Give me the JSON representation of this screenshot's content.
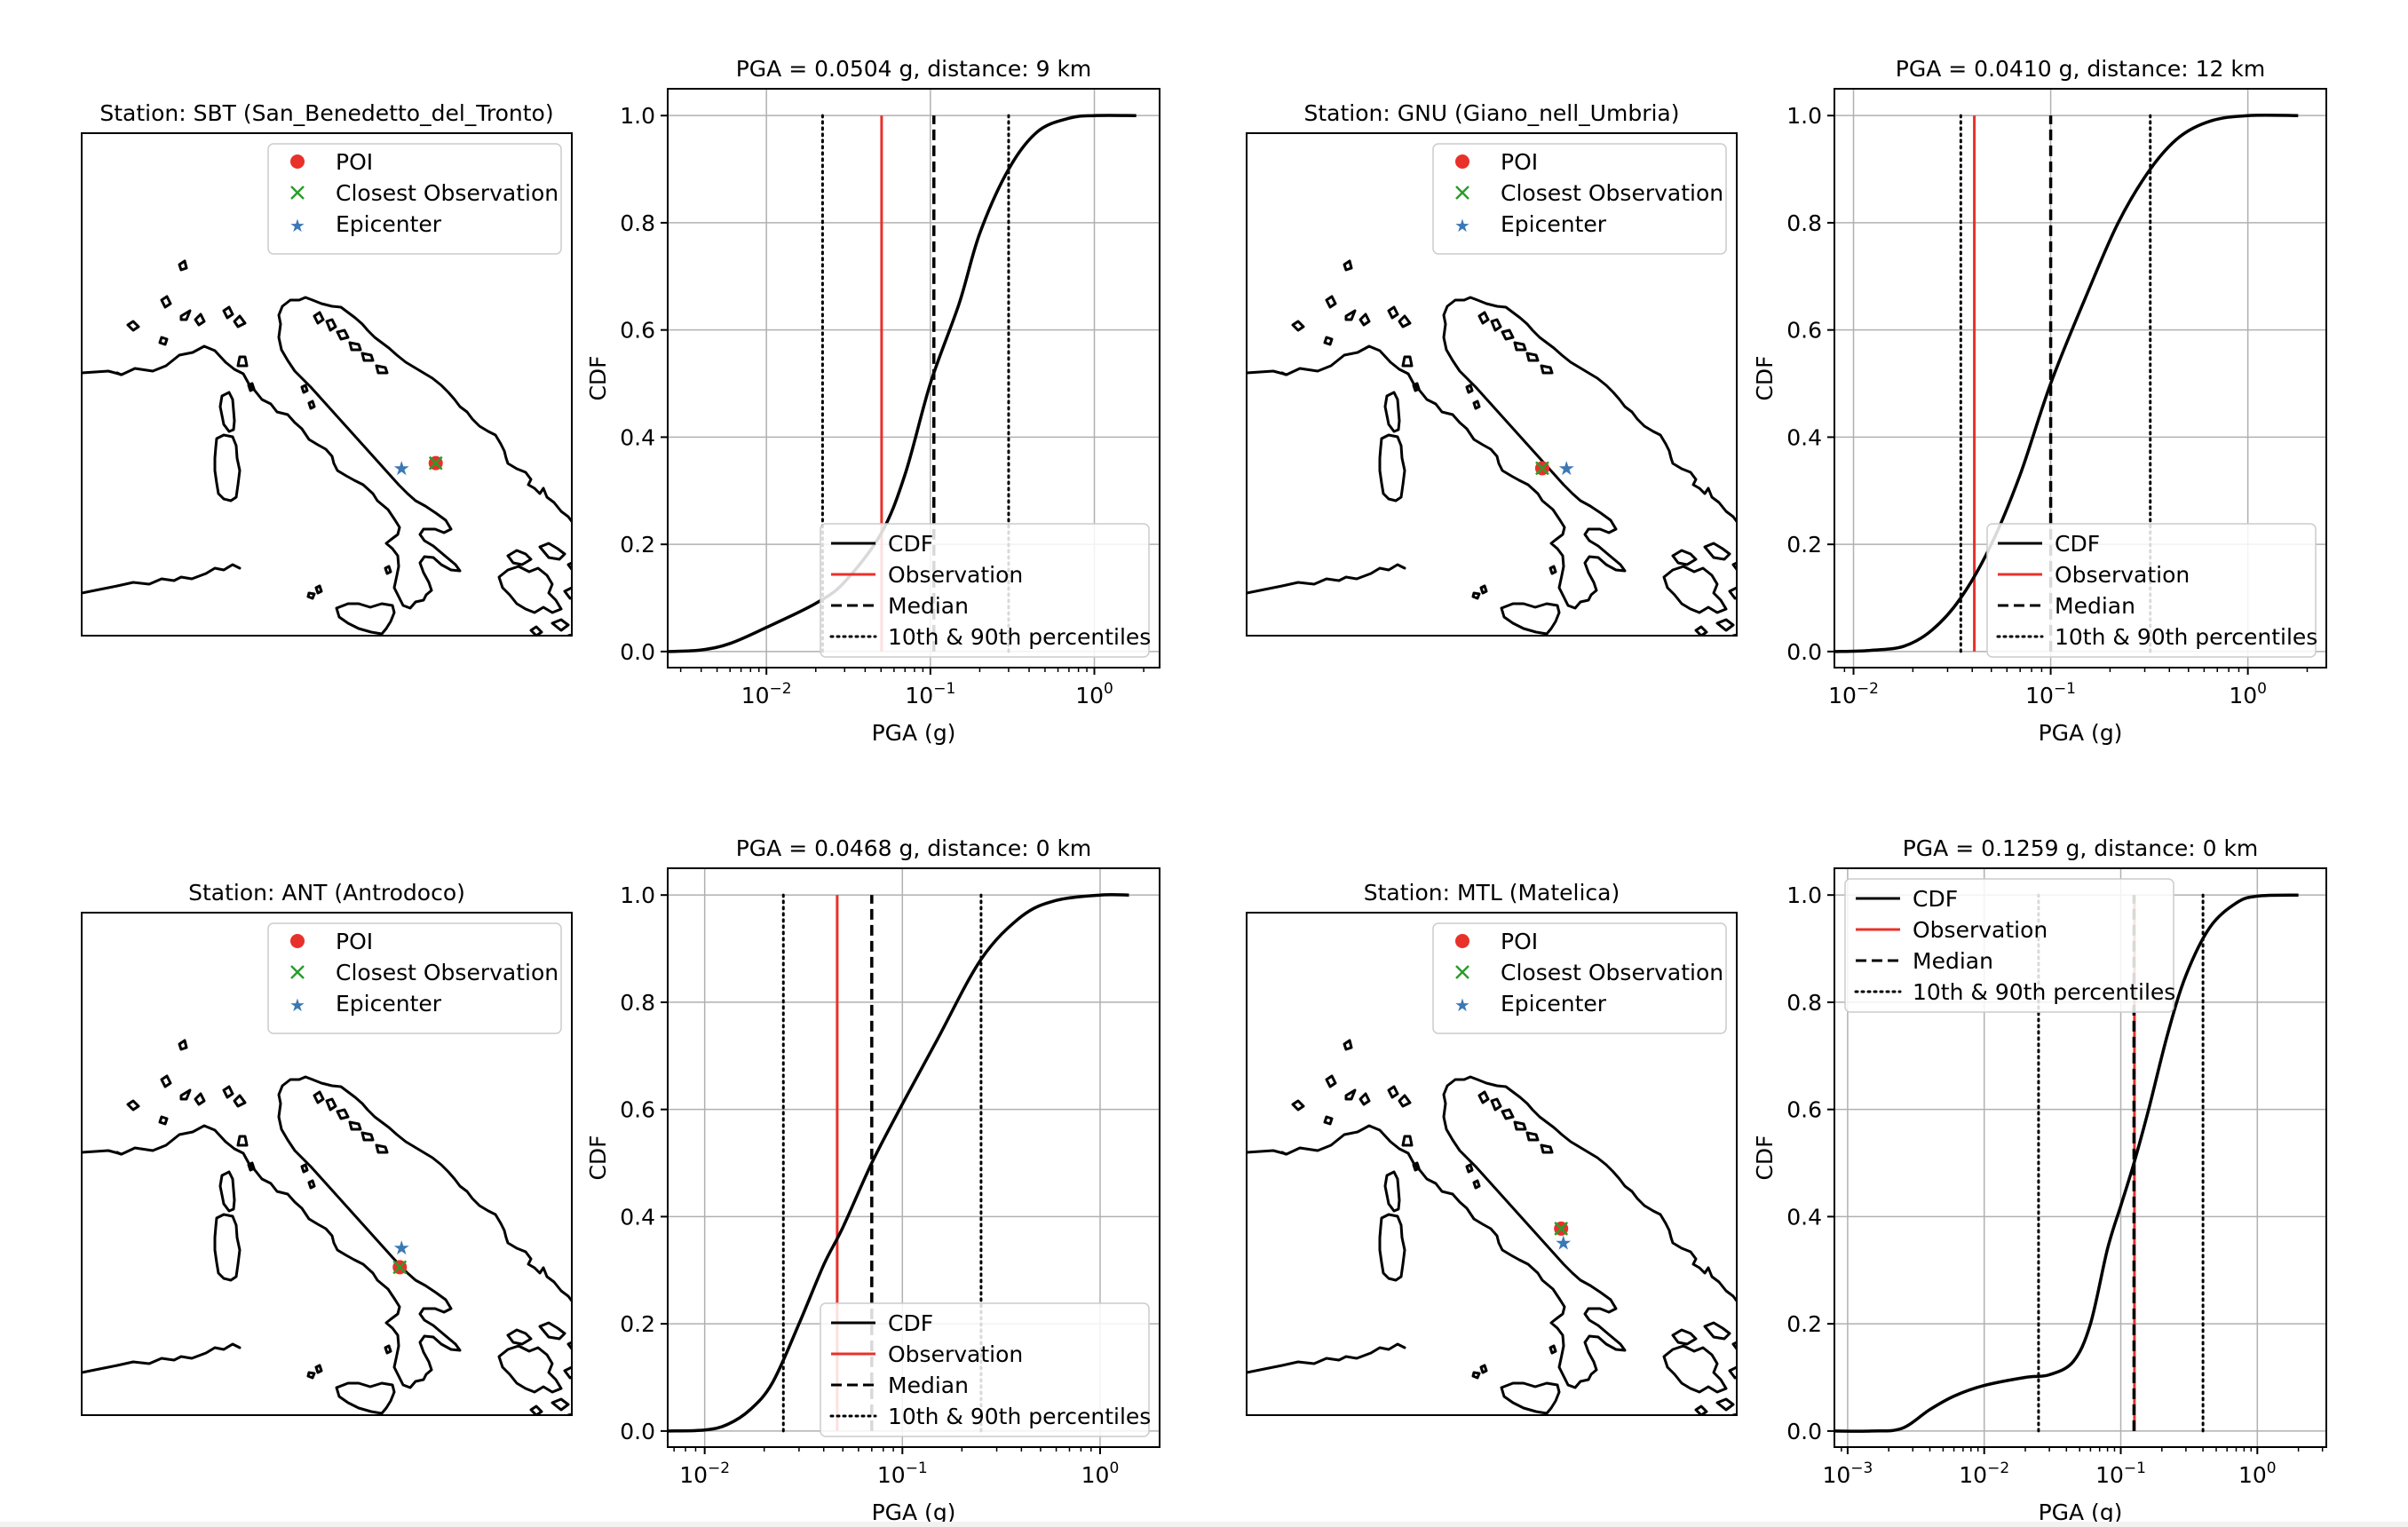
{
  "map_legend": {
    "poi": "POI",
    "closest": "Closest Observation",
    "epicenter": "Epicenter"
  },
  "cdf_legend": {
    "cdf": "CDF",
    "obs": "Observation",
    "median": "Median",
    "pct": "10th & 90th percentiles"
  },
  "colors": {
    "poi": "#e8312a",
    "closest": "#2a9d2a",
    "epicenter": "#3b78b5",
    "observation": "#e8312a",
    "cdf": "#000000"
  },
  "chart_data": [
    {
      "type": "map",
      "title": "Station: SBT (San_Benedetto_del_Tronto)",
      "markers": {
        "poi": [
          13.88,
          42.95
        ],
        "closest": [
          13.88,
          42.95
        ],
        "epicenter": [
          13.12,
          42.85
        ]
      }
    },
    {
      "type": "line",
      "title": "PGA = 0.0504 g, distance: 9 km",
      "xlabel": "PGA (g)",
      "ylabel": "CDF",
      "xscale": "log",
      "xlim": [
        0.0025,
        2.5
      ],
      "ylim": [
        -0.03,
        1.05
      ],
      "xticks": [
        0.01,
        0.1,
        1
      ],
      "xtick_labels": [
        "10^-2",
        "10^-1",
        "10^0"
      ],
      "yticks": [
        0.0,
        0.2,
        0.4,
        0.6,
        0.8,
        1.0
      ],
      "ytick_labels": [
        "0.0",
        "0.2",
        "0.4",
        "0.6",
        "0.8",
        "1.0"
      ],
      "observation": 0.0504,
      "median": 0.105,
      "p10": 0.022,
      "p90": 0.3,
      "legend": "lower-right",
      "grid": true,
      "cdf": {
        "x": [
          0.0025,
          0.004,
          0.006,
          0.01,
          0.02,
          0.03,
          0.05,
          0.07,
          0.1,
          0.15,
          0.2,
          0.3,
          0.45,
          0.7,
          1.0,
          1.8
        ],
        "y": [
          0.0,
          0.003,
          0.015,
          0.045,
          0.09,
          0.13,
          0.22,
          0.33,
          0.5,
          0.65,
          0.78,
          0.9,
          0.97,
          0.995,
          1.0,
          1.0
        ]
      }
    },
    {
      "type": "map",
      "title": "Station: GNU (Giano_nell_Umbria)",
      "markers": {
        "poi": [
          12.58,
          42.84
        ],
        "closest": [
          12.58,
          42.84
        ],
        "epicenter": [
          13.12,
          42.85
        ]
      }
    },
    {
      "type": "line",
      "title": "PGA = 0.0410 g, distance: 12 km",
      "xlabel": "PGA (g)",
      "ylabel": "CDF",
      "xscale": "log",
      "xlim": [
        0.008,
        2.5
      ],
      "ylim": [
        -0.03,
        1.05
      ],
      "xticks": [
        0.01,
        0.1,
        1
      ],
      "xtick_labels": [
        "10^-2",
        "10^-1",
        "10^0"
      ],
      "yticks": [
        0.0,
        0.2,
        0.4,
        0.6,
        0.8,
        1.0
      ],
      "ytick_labels": [
        "0.0",
        "0.2",
        "0.4",
        "0.6",
        "0.8",
        "1.0"
      ],
      "observation": 0.041,
      "median": 0.1,
      "p10": 0.035,
      "p90": 0.32,
      "legend": "lower-right",
      "grid": true,
      "cdf": {
        "x": [
          0.008,
          0.012,
          0.018,
          0.025,
          0.035,
          0.05,
          0.07,
          0.1,
          0.15,
          0.22,
          0.32,
          0.45,
          0.65,
          1.0,
          1.8
        ],
        "y": [
          0.0,
          0.002,
          0.01,
          0.04,
          0.1,
          0.2,
          0.33,
          0.5,
          0.66,
          0.8,
          0.9,
          0.96,
          0.99,
          1.0,
          1.0
        ]
      }
    },
    {
      "type": "map",
      "title": "Station: ANT (Antrodoco)",
      "markers": {
        "poi": [
          13.08,
          42.42
        ],
        "closest": [
          13.08,
          42.42
        ],
        "epicenter": [
          13.12,
          42.85
        ]
      }
    },
    {
      "type": "line",
      "title": "PGA = 0.0468 g, distance: 0 km",
      "xlabel": "PGA (g)",
      "ylabel": "CDF",
      "xscale": "log",
      "xlim": [
        0.0065,
        2.0
      ],
      "ylim": [
        -0.03,
        1.05
      ],
      "xticks": [
        0.01,
        0.1,
        1
      ],
      "xtick_labels": [
        "10^-2",
        "10^-1",
        "10^0"
      ],
      "yticks": [
        0.0,
        0.2,
        0.4,
        0.6,
        0.8,
        1.0
      ],
      "ytick_labels": [
        "0.0",
        "0.2",
        "0.4",
        "0.6",
        "0.8",
        "1.0"
      ],
      "observation": 0.0468,
      "median": 0.07,
      "p10": 0.025,
      "p90": 0.25,
      "legend": "lower-right",
      "grid": true,
      "cdf": {
        "x": [
          0.0065,
          0.01,
          0.013,
          0.017,
          0.022,
          0.03,
          0.04,
          0.05,
          0.07,
          0.1,
          0.15,
          0.25,
          0.4,
          0.6,
          1.0,
          1.4
        ],
        "y": [
          0.0,
          0.002,
          0.012,
          0.04,
          0.09,
          0.2,
          0.31,
          0.38,
          0.5,
          0.61,
          0.73,
          0.88,
          0.96,
          0.99,
          1.0,
          1.0
        ]
      }
    },
    {
      "type": "map",
      "title": "Station: MTL (Matelica)",
      "markers": {
        "poi": [
          13.0,
          43.25
        ],
        "closest": [
          13.0,
          43.25
        ],
        "epicenter": [
          13.05,
          42.95
        ]
      }
    },
    {
      "type": "line",
      "title": "PGA = 0.1259 g, distance: 0 km",
      "xlabel": "PGA (g)",
      "ylabel": "CDF",
      "xscale": "log",
      "xlim": [
        0.0008,
        3.2
      ],
      "ylim": [
        -0.03,
        1.05
      ],
      "xticks": [
        0.001,
        0.01,
        0.1,
        1
      ],
      "xtick_labels": [
        "10^-3",
        "10^-2",
        "10^-1",
        "10^0"
      ],
      "yticks": [
        0.0,
        0.2,
        0.4,
        0.6,
        0.8,
        1.0
      ],
      "ytick_labels": [
        "0.0",
        "0.2",
        "0.4",
        "0.6",
        "0.8",
        "1.0"
      ],
      "observation": 0.1259,
      "median": 0.125,
      "p10": 0.025,
      "p90": 0.4,
      "legend": "upper-left",
      "grid": true,
      "cdf": {
        "x": [
          0.0008,
          0.0015,
          0.0025,
          0.004,
          0.006,
          0.01,
          0.02,
          0.03,
          0.045,
          0.06,
          0.08,
          0.1,
          0.125,
          0.16,
          0.22,
          0.3,
          0.45,
          0.7,
          1.0,
          2.0
        ],
        "y": [
          0.0,
          0.0,
          0.005,
          0.04,
          0.065,
          0.085,
          0.1,
          0.105,
          0.13,
          0.2,
          0.34,
          0.42,
          0.5,
          0.6,
          0.74,
          0.85,
          0.94,
          0.985,
          0.998,
          1.0
        ]
      }
    }
  ]
}
